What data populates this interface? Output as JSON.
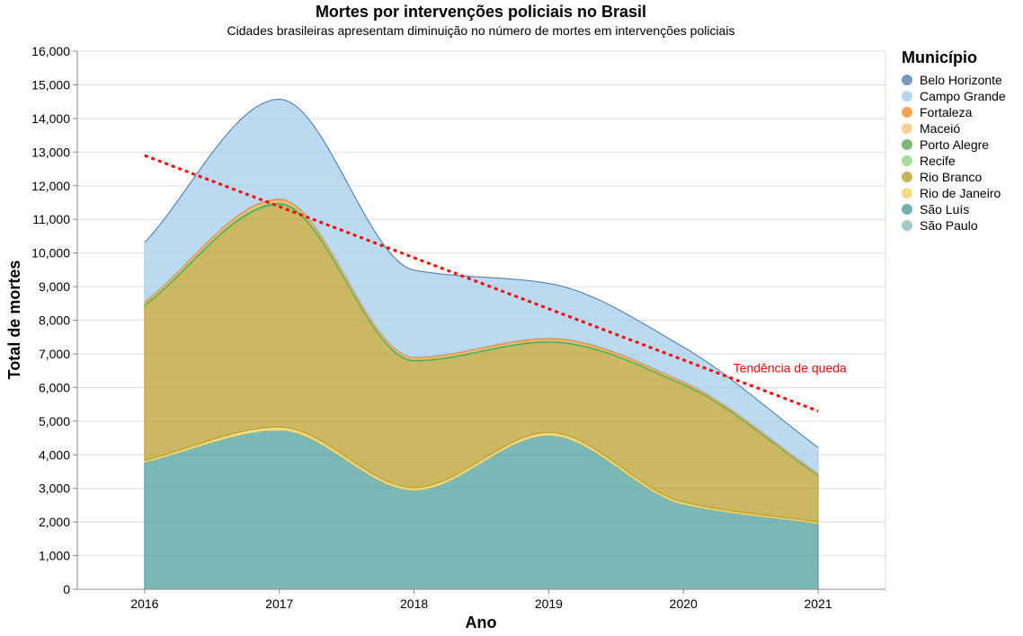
{
  "chart_data": {
    "type": "area",
    "title": "Mortes por intervenções policiais no Brasil",
    "subtitle": "Cidades brasileiras apresentam diminuição no número de mortes em intervenções policiais",
    "xlabel": "Ano",
    "ylabel": "Total de mortes",
    "x": [
      2016,
      2017,
      2018,
      2019,
      2020,
      2021
    ],
    "ylim": [
      0,
      16000
    ],
    "yticks": [
      0,
      1000,
      2000,
      3000,
      4000,
      5000,
      6000,
      7000,
      8000,
      9000,
      10000,
      11000,
      12000,
      13000,
      14000,
      15000,
      16000
    ],
    "stacked": true,
    "grid": true,
    "legend_title": "Município",
    "legend_position": "right",
    "series": [
      {
        "name": "Belo Horizonte",
        "color": "#4c78a8",
        "values": [
          0,
          0,
          0,
          0,
          0,
          0
        ]
      },
      {
        "name": "Campo Grande",
        "color": "#9ecae9",
        "values": [
          1750,
          2950,
          2580,
          1620,
          1020,
          760
        ]
      },
      {
        "name": "Fortaleza",
        "color": "#f58518",
        "values": [
          30,
          40,
          30,
          35,
          25,
          15
        ]
      },
      {
        "name": "Maceió",
        "color": "#ffbf79",
        "values": [
          40,
          60,
          40,
          40,
          30,
          20
        ]
      },
      {
        "name": "Porto Alegre",
        "color": "#54a24b",
        "values": [
          50,
          70,
          50,
          50,
          40,
          30
        ]
      },
      {
        "name": "Recife",
        "color": "#88d27a",
        "values": [
          20,
          30,
          20,
          20,
          15,
          10
        ]
      },
      {
        "name": "Rio Branco",
        "color": "#b79a20",
        "values": [
          4590,
          6600,
          3750,
          2670,
          3480,
          1380
        ]
      },
      {
        "name": "Rio de Janeiro",
        "color": "#f2cf5b",
        "values": [
          50,
          90,
          70,
          80,
          60,
          40
        ]
      },
      {
        "name": "São Luís",
        "color": "#439894",
        "values": [
          3780,
          4730,
          2950,
          4580,
          2530,
          1960
        ]
      },
      {
        "name": "São Paulo",
        "color": "#83bcb6",
        "values": [
          0,
          0,
          0,
          0,
          0,
          0
        ]
      }
    ],
    "trend": {
      "x": [
        2016,
        2021
      ],
      "y": [
        12900,
        5300
      ],
      "color": "#ff0000",
      "label": "Tendência de queda",
      "label_x": 2020.37,
      "label_y": 6450
    }
  }
}
